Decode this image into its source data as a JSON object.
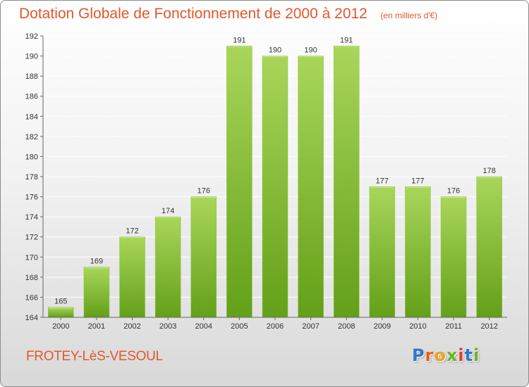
{
  "header": {
    "title": "Dotation Globale de Fonctionnement de 2000 à 2012",
    "subtitle": "(en milliers d'€)"
  },
  "footer": {
    "commune": "FROTEY-LèS-VESOUL",
    "logo_text": "Proxiti",
    "logo_letters": [
      "P",
      "r",
      "o",
      "x",
      "i",
      "t",
      "i"
    ]
  },
  "colors": {
    "title": "#e0582b",
    "bar_light": "#a9d65a",
    "bar_dark": "#63a019",
    "grid": "#ffffff",
    "axis_text": "#333333"
  },
  "chart_data": {
    "type": "bar",
    "title": "Dotation Globale de Fonctionnement de 2000 à 2012",
    "subtitle": "(en milliers d'€)",
    "xlabel": "",
    "ylabel": "",
    "categories": [
      "2000",
      "2001",
      "2002",
      "2003",
      "2004",
      "2005",
      "2006",
      "2007",
      "2008",
      "2009",
      "2010",
      "2011",
      "2012"
    ],
    "values": [
      165,
      169,
      172,
      174,
      176,
      191,
      190,
      190,
      191,
      177,
      177,
      176,
      178
    ],
    "data_labels": [
      "165",
      "169",
      "172",
      "174",
      "176",
      "191",
      "190",
      "190",
      "191",
      "177",
      "177",
      "176",
      "178"
    ],
    "ylim": [
      164,
      192
    ],
    "yticks": [
      164,
      166,
      168,
      170,
      172,
      174,
      176,
      178,
      180,
      182,
      184,
      186,
      188,
      190,
      192
    ],
    "grid": true,
    "legend": "none"
  }
}
